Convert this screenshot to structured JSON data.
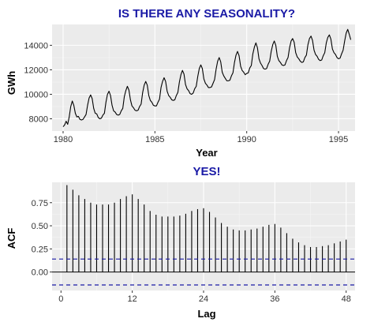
{
  "chart_data": [
    {
      "type": "line",
      "title": "IS THERE ANY SEASONALITY?",
      "xlabel": "Year",
      "ylabel": "GWh",
      "x_start": 1980,
      "x_step_months": 1,
      "xlim": [
        1979.4,
        1995.9
      ],
      "ylim": [
        7000,
        15700
      ],
      "x_ticks": [
        1980,
        1985,
        1990,
        1995
      ],
      "y_ticks": [
        8000,
        10000,
        12000,
        14000
      ],
      "grid": true,
      "series": [
        {
          "values": [
            7350,
            7500,
            7800,
            7550,
            8150,
            9000,
            9450,
            9100,
            8450,
            8150,
            8200,
            7950,
            7900,
            7950,
            8150,
            8350,
            9100,
            9700,
            9950,
            9650,
            8850,
            8450,
            8400,
            8100,
            8000,
            8050,
            8300,
            8450,
            9350,
            10000,
            10250,
            9900,
            9100,
            8650,
            8550,
            8350,
            8300,
            8350,
            8650,
            8850,
            9800,
            10300,
            10650,
            10350,
            9550,
            9050,
            8900,
            8700,
            8650,
            8700,
            9000,
            9200,
            10150,
            10750,
            11050,
            10750,
            9900,
            9500,
            9350,
            9100,
            9050,
            9050,
            9350,
            9600,
            10550,
            11050,
            11350,
            11050,
            10250,
            9900,
            9750,
            9550,
            9500,
            9550,
            9900,
            10150,
            11000,
            11600,
            11950,
            11650,
            10800,
            10450,
            10300,
            10050,
            10000,
            10100,
            10450,
            10650,
            11450,
            12100,
            12400,
            12100,
            11250,
            10900,
            10750,
            10550,
            10550,
            10600,
            10900,
            11200,
            12050,
            12700,
            13000,
            12650,
            11800,
            11500,
            11300,
            11100,
            11100,
            11150,
            11500,
            11750,
            12600,
            13200,
            13500,
            13150,
            12300,
            11950,
            11800,
            11600,
            11700,
            11750,
            12150,
            12350,
            13300,
            13850,
            14200,
            13800,
            12900,
            12550,
            12350,
            12100,
            12050,
            12100,
            12450,
            12700,
            13500,
            14050,
            14350,
            14000,
            13100,
            12750,
            12600,
            12400,
            12350,
            12400,
            12750,
            13000,
            13800,
            14350,
            14550,
            14250,
            13400,
            13050,
            12900,
            12700,
            12600,
            12650,
            13000,
            13200,
            14050,
            14550,
            14750,
            14400,
            13600,
            13250,
            13100,
            12850,
            12750,
            12800,
            13150,
            13400,
            14200,
            14650,
            14850,
            14500,
            13700,
            13400,
            13250,
            13000,
            12900,
            12950,
            13300,
            13600,
            14350,
            15000,
            15300,
            14900,
            14450
          ]
        }
      ]
    },
    {
      "type": "bar",
      "title": "YES!",
      "xlabel": "Lag",
      "ylabel": "ACF",
      "xlim": [
        -1.5,
        49.5
      ],
      "ylim": [
        -0.2,
        0.97
      ],
      "x_ticks": [
        0,
        12,
        24,
        36,
        48
      ],
      "y_ticks": [
        "0.00",
        "0.25",
        "0.50",
        "0.75"
      ],
      "grid": true,
      "lags": [
        1,
        2,
        3,
        4,
        5,
        6,
        7,
        8,
        9,
        10,
        11,
        12,
        13,
        14,
        15,
        16,
        17,
        18,
        19,
        20,
        21,
        22,
        23,
        24,
        25,
        26,
        27,
        28,
        29,
        30,
        31,
        32,
        33,
        34,
        35,
        36,
        37,
        38,
        39,
        40,
        41,
        42,
        43,
        44,
        45,
        46,
        47,
        48
      ],
      "values": [
        0.94,
        0.89,
        0.83,
        0.79,
        0.75,
        0.73,
        0.73,
        0.73,
        0.75,
        0.79,
        0.82,
        0.84,
        0.79,
        0.73,
        0.66,
        0.62,
        0.6,
        0.6,
        0.6,
        0.61,
        0.63,
        0.66,
        0.68,
        0.69,
        0.65,
        0.59,
        0.53,
        0.49,
        0.46,
        0.45,
        0.45,
        0.46,
        0.47,
        0.49,
        0.51,
        0.52,
        0.48,
        0.42,
        0.36,
        0.32,
        0.29,
        0.27,
        0.27,
        0.28,
        0.29,
        0.31,
        0.33,
        0.35
      ],
      "confidence_bounds": [
        0.14,
        -0.14
      ],
      "bound_color": "#1a1aa6"
    }
  ]
}
